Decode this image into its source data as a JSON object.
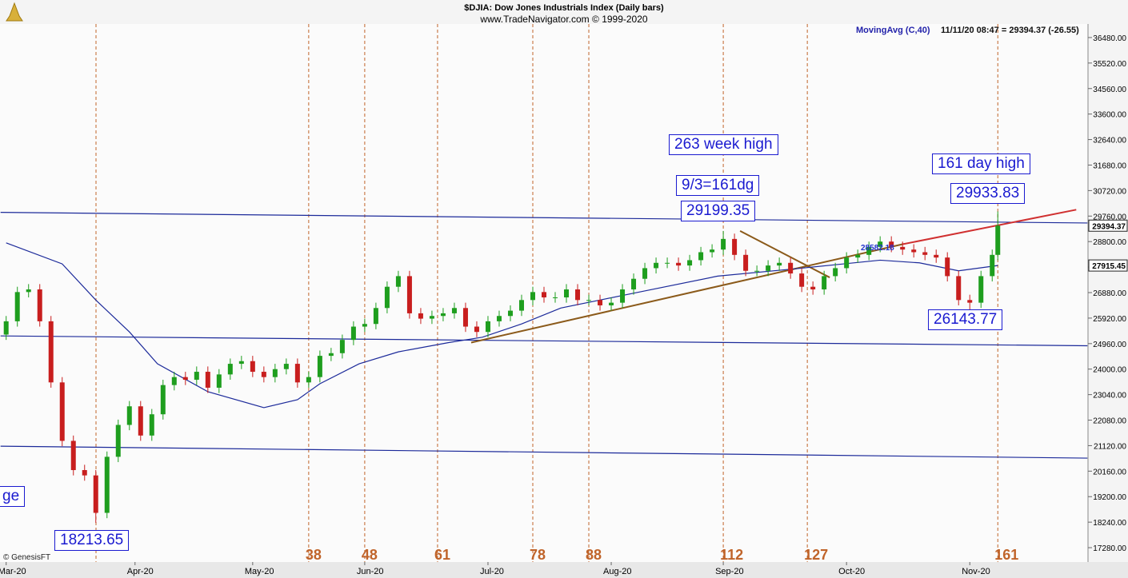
{
  "chart_data": {
    "type": "candlestick",
    "title": "$DJIA:  Dow Jones Industrials Index  (Daily bars)",
    "subtitle": "www.TradeNavigator.com © 1999-2020",
    "legend": "MovingAvg (C,40)",
    "status": "11/11/20 08:47 = 29394.37 (-26.55)",
    "credit": "© GenesisFT",
    "up_color": "#1e9e1e",
    "down_color": "#c81e1e",
    "x": [
      -16,
      -14,
      -12,
      -10,
      -8,
      -6,
      -4,
      -2,
      0,
      2,
      4,
      6,
      8,
      10,
      12,
      14,
      16,
      18,
      20,
      22,
      24,
      26,
      28,
      30,
      32,
      34,
      36,
      38,
      40,
      42,
      44,
      46,
      48,
      50,
      52,
      54,
      56,
      58,
      60,
      62,
      64,
      66,
      68,
      70,
      72,
      74,
      76,
      78,
      80,
      82,
      84,
      86,
      88,
      90,
      92,
      94,
      96,
      98,
      100,
      102,
      104,
      106,
      108,
      110,
      112,
      114,
      116,
      118,
      120,
      122,
      124,
      126,
      128,
      130,
      132,
      134,
      136,
      138,
      140,
      142,
      144,
      146,
      148,
      150,
      152,
      154,
      156,
      158,
      160,
      161
    ],
    "open": [
      25300,
      25800,
      26900,
      27000,
      25800,
      23500,
      21300,
      20200,
      20000,
      18590,
      20700,
      21900,
      22600,
      21500,
      22300,
      23400,
      23700,
      23600,
      23900,
      23300,
      23800,
      24200,
      24300,
      23900,
      23700,
      24000,
      24200,
      23500,
      23700,
      24500,
      24600,
      25100,
      25600,
      25700,
      26300,
      27100,
      27500,
      26100,
      25900,
      26000,
      26100,
      26300,
      25600,
      25400,
      25800,
      26000,
      26200,
      26600,
      26900,
      26700,
      26700,
      27000,
      26600,
      26600,
      26400,
      26500,
      27000,
      27400,
      27800,
      28000,
      28000,
      27900,
      28100,
      28400,
      28500,
      28900,
      28300,
      27700,
      27700,
      27900,
      28000,
      27600,
      27100,
      27000,
      27500,
      27800,
      28200,
      28300,
      28600,
      28800,
      28600,
      28500,
      28400,
      28300,
      28200,
      27500,
      26600,
      26500,
      27500,
      28300
    ],
    "high": [
      26000,
      27100,
      27200,
      27200,
      26000,
      23700,
      21500,
      20400,
      20200,
      20900,
      22100,
      22800,
      22800,
      22500,
      23600,
      23900,
      23900,
      24100,
      24100,
      24000,
      24400,
      24500,
      24500,
      24100,
      24200,
      24400,
      24400,
      23900,
      24700,
      24800,
      25300,
      25800,
      25900,
      26500,
      27300,
      27700,
      27700,
      26300,
      26200,
      26300,
      26500,
      26500,
      25800,
      26000,
      26200,
      26400,
      26800,
      27100,
      27100,
      26900,
      27200,
      27200,
      26800,
      26800,
      26700,
      27200,
      27600,
      28000,
      28200,
      28200,
      28200,
      28300,
      28600,
      28700,
      29199.35,
      29100,
      28500,
      27900,
      28100,
      28200,
      28200,
      27800,
      27300,
      27700,
      28000,
      28400,
      28500,
      28800,
      29000,
      29000,
      28800,
      28700,
      28600,
      28500,
      28400,
      27700,
      26800,
      27700,
      28500,
      29933.83
    ],
    "low": [
      25100,
      25600,
      26700,
      25600,
      23300,
      21100,
      20000,
      19800,
      18213.65,
      18390,
      20500,
      21700,
      21300,
      21300,
      22100,
      23200,
      23400,
      23400,
      23100,
      23100,
      23600,
      24000,
      23700,
      23500,
      23500,
      23800,
      23300,
      23300,
      23500,
      24300,
      24400,
      24900,
      25400,
      25500,
      26100,
      26900,
      25900,
      25700,
      25700,
      25800,
      25900,
      25400,
      25200,
      25200,
      25600,
      25800,
      26000,
      26400,
      26500,
      26500,
      26500,
      26400,
      26400,
      26200,
      26200,
      26300,
      26800,
      27200,
      27600,
      27800,
      27700,
      27700,
      27900,
      28200,
      28300,
      28100,
      27500,
      27500,
      27500,
      27700,
      27400,
      26900,
      26800,
      26800,
      27300,
      27600,
      28000,
      28100,
      28400,
      28400,
      28300,
      28200,
      28100,
      28000,
      27300,
      26400,
      26143.77,
      26300,
      27300,
      28100
    ],
    "close": [
      25800,
      26900,
      27000,
      25800,
      23500,
      21300,
      20200,
      20000,
      18590,
      20700,
      21900,
      22600,
      21500,
      22300,
      23400,
      23700,
      23600,
      23900,
      23300,
      23800,
      24200,
      24300,
      23900,
      23700,
      24000,
      24200,
      23500,
      23700,
      24500,
      24600,
      25100,
      25600,
      25700,
      26300,
      27100,
      27500,
      26100,
      25900,
      26000,
      26100,
      26300,
      25600,
      25400,
      25800,
      26000,
      26200,
      26600,
      26900,
      26700,
      26700,
      27000,
      26600,
      26600,
      26400,
      26500,
      27000,
      27400,
      27800,
      28000,
      28000,
      27900,
      28100,
      28400,
      28500,
      28900,
      28300,
      27700,
      27700,
      27900,
      28000,
      27600,
      27100,
      27000,
      27500,
      27800,
      28200,
      28300,
      28600,
      28800,
      28600,
      28500,
      28400,
      28300,
      28200,
      27500,
      26600,
      26500,
      27500,
      28300,
      29400
    ],
    "moving_average": {
      "color": "#1c2a9a",
      "x": [
        -16,
        -6,
        0,
        6,
        11,
        20,
        30,
        36,
        40,
        47,
        54,
        63,
        69,
        76,
        83,
        90,
        97,
        111,
        126,
        133,
        140,
        147,
        154,
        161
      ],
      "values": [
        28750,
        27960,
        26600,
        25400,
        24200,
        23150,
        22550,
        22850,
        23450,
        24200,
        24650,
        25000,
        25200,
        25700,
        26300,
        26600,
        26900,
        27500,
        27800,
        27950,
        28100,
        28000,
        27700,
        27900
      ]
    },
    "lines": [
      {
        "color": "#1c2a9a",
        "x": [
          -17,
          177
        ],
        "values": [
          29900,
          29500
        ]
      },
      {
        "color": "#1c2a9a",
        "x": [
          -17,
          177
        ],
        "values": [
          25250,
          24880
        ]
      },
      {
        "color": "#1c2a9a",
        "x": [
          -17,
          177
        ],
        "values": [
          21100,
          20650
        ]
      },
      {
        "color": "#8b5a1a",
        "x": [
          67,
          144
        ],
        "values": [
          25000,
          28700
        ]
      },
      {
        "color": "#8b5a1a",
        "x": [
          115,
          131
        ],
        "values": [
          29200,
          27450
        ]
      },
      {
        "color": "#d03030",
        "x": [
          144,
          175
        ],
        "values": [
          28700,
          30000
        ]
      }
    ],
    "xlim": [
      -17.1,
      177.1
    ],
    "ylim": [
      16740,
      36990
    ],
    "xticks": [
      {
        "value": -16,
        "label": "Mar-20"
      },
      {
        "value": 7,
        "label": "Apr-20"
      },
      {
        "value": 28,
        "label": "May-20"
      },
      {
        "value": 48,
        "label": "Jun-20"
      },
      {
        "value": 70,
        "label": "Jul-20"
      },
      {
        "value": 92,
        "label": "Aug-20"
      },
      {
        "value": 112,
        "label": "Sep-20"
      },
      {
        "value": 134,
        "label": "Oct-20"
      },
      {
        "value": 156,
        "label": "Nov-20"
      }
    ],
    "yticks": [
      {
        "value": 17280,
        "label": "17280.00"
      },
      {
        "value": 18240,
        "label": "18240.00"
      },
      {
        "value": 19200,
        "label": "19200.00"
      },
      {
        "value": 20160,
        "label": "20160.00"
      },
      {
        "value": 21120,
        "label": "21120.00"
      },
      {
        "value": 22080,
        "label": "22080.00"
      },
      {
        "value": 23040,
        "label": "23040.00"
      },
      {
        "value": 24000,
        "label": "24000.00"
      },
      {
        "value": 24960,
        "label": "24960.00"
      },
      {
        "value": 25920,
        "label": "25920.00"
      },
      {
        "value": 26880,
        "label": "26880.00"
      },
      {
        "value": 27840,
        "label": "27840.00"
      },
      {
        "value": 28800,
        "label": "28800.00"
      },
      {
        "value": 29760,
        "label": "29760.00"
      },
      {
        "value": 30720,
        "label": "30720.00"
      },
      {
        "value": 31680,
        "label": "31680.00"
      },
      {
        "value": 32640,
        "label": "32640.00"
      },
      {
        "value": 33600,
        "label": "33600.00"
      },
      {
        "value": 34560,
        "label": "34560.00"
      },
      {
        "value": 35520,
        "label": "35520.00"
      },
      {
        "value": 36480,
        "label": "36480.00"
      }
    ],
    "cycle_days": [
      38,
      48,
      61,
      78,
      88,
      112,
      127,
      161
    ],
    "price_flags": [
      "29394.37",
      "27915.45"
    ],
    "ma_tag": "28582.18",
    "annotations": [
      "263 week high",
      "9/3=161dg",
      "29199.35",
      "161 day high",
      "29933.83",
      "26143.77",
      "18213.65",
      "ge"
    ]
  }
}
